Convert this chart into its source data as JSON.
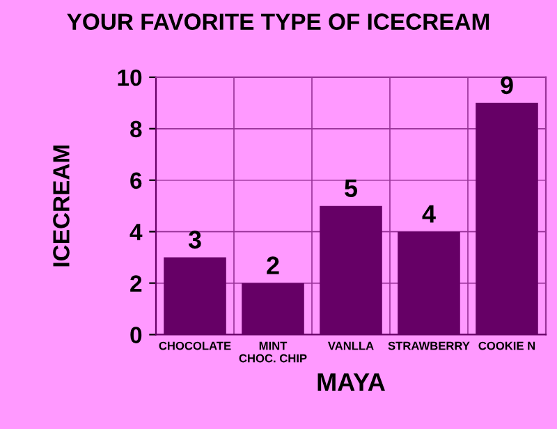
{
  "chart_data": {
    "type": "bar",
    "title": "YOUR FAVORITE TYPE OF ICECREAM",
    "xlabel": "MAYA",
    "ylabel": "ICECREAM",
    "categories": [
      "CHOCOLATE",
      "MINT\nCHOC. CHIP",
      "VANLLA",
      "STRAWBERRY",
      "COOKIE N"
    ],
    "series": [
      {
        "color": "#660066",
        "values": [
          3,
          2,
          5,
          4,
          9
        ]
      }
    ],
    "ylim": [
      0,
      10
    ],
    "yticks": [
      0,
      2,
      4,
      6,
      8,
      10
    ],
    "grid": true,
    "data_labels": true
  }
}
